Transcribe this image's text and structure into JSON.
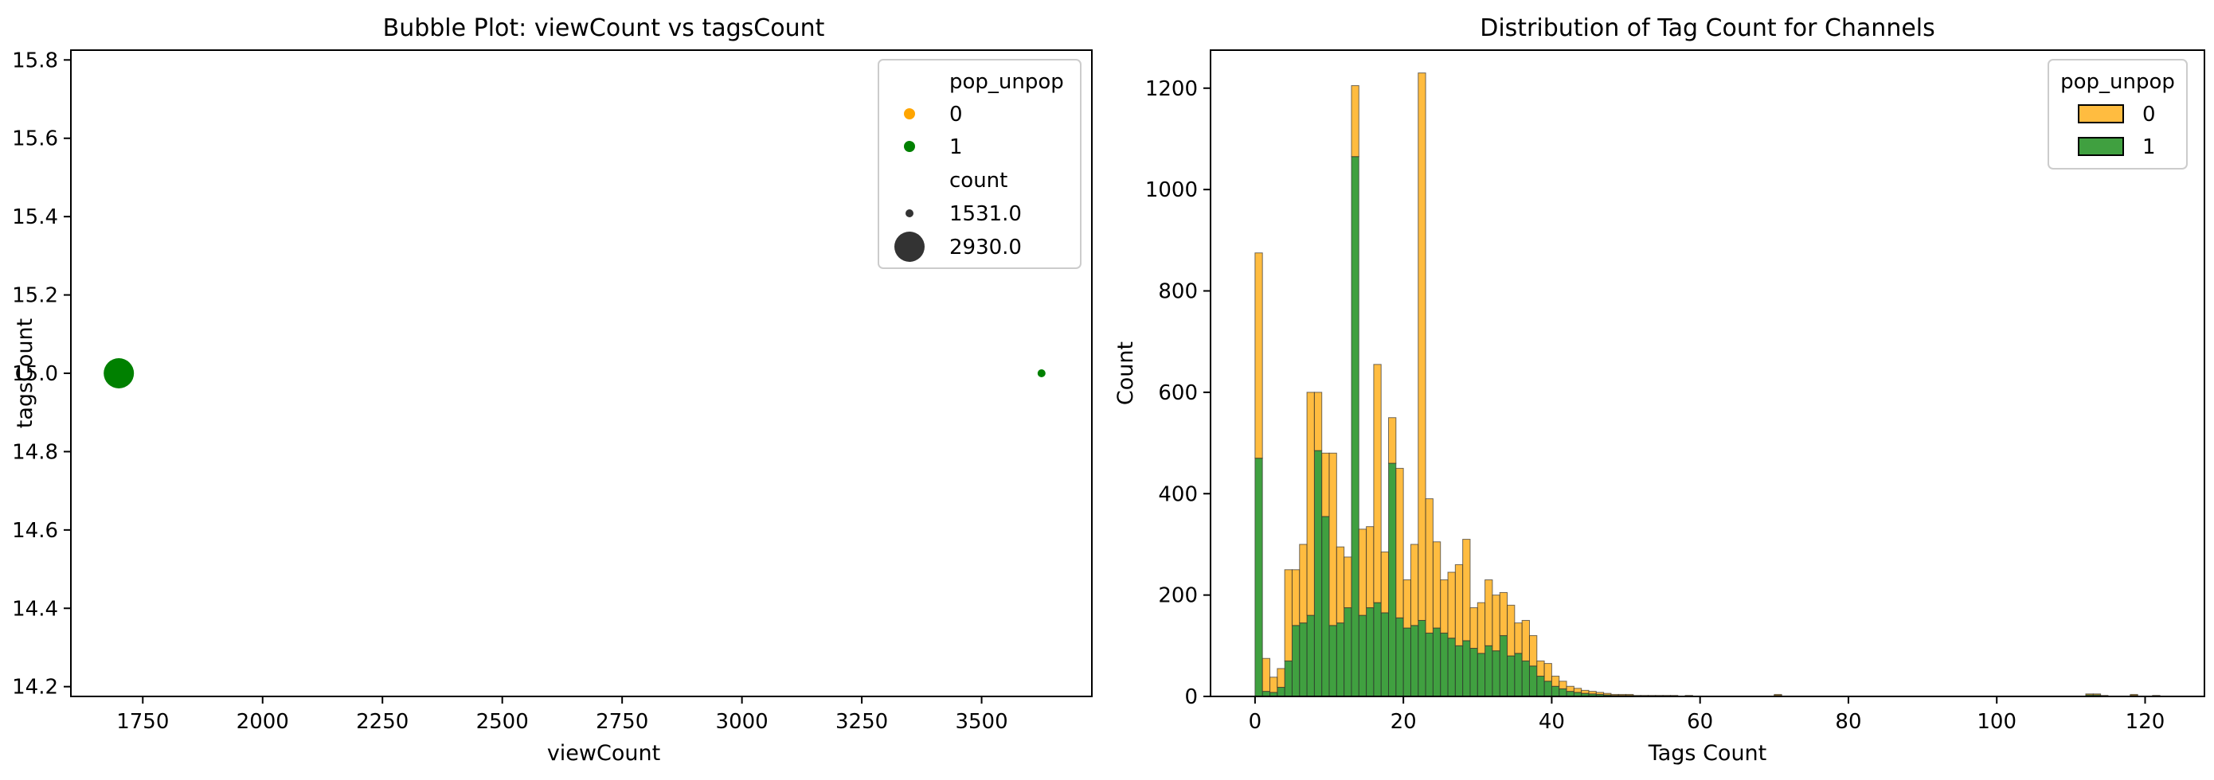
{
  "chart_data": [
    {
      "type": "scatter",
      "title": "Bubble Plot: viewCount vs tagsCount",
      "xlabel": "viewCount",
      "ylabel": "tagsCount",
      "xlim": [
        1600,
        3730
      ],
      "ylim": [
        14.175,
        15.825
      ],
      "xticks": [
        1750,
        2000,
        2250,
        2500,
        2750,
        3000,
        3250,
        3500
      ],
      "yticks": [
        14.2,
        14.4,
        14.6,
        14.8,
        15.0,
        15.2,
        15.4,
        15.6,
        15.8
      ],
      "points": [
        {
          "x": 1700,
          "y": 15.0,
          "pop_unpop": 1,
          "count": 2930.0
        },
        {
          "x": 3625,
          "y": 15.0,
          "pop_unpop": 1,
          "count": 1531.0
        }
      ],
      "legend": {
        "position": "upper right",
        "hue_title": "pop_unpop",
        "hue_entries": [
          {
            "label": "0",
            "color": "#ffa500"
          },
          {
            "label": "1",
            "color": "#008000"
          }
        ],
        "size_title": "count",
        "size_entries": [
          {
            "label": "1531.0"
          },
          {
            "label": "2930.0"
          }
        ]
      }
    },
    {
      "type": "bar",
      "subtype": "stacked-histogram",
      "title": "Distribution of Tag Count for Channels",
      "xlabel": "Tags Count",
      "ylabel": "Count",
      "xlim": [
        -6,
        128
      ],
      "ylim": [
        0,
        1275
      ],
      "xticks": [
        0,
        20,
        40,
        60,
        80,
        100,
        120
      ],
      "yticks": [
        0,
        200,
        400,
        600,
        800,
        1000,
        1200
      ],
      "bin_width": 1,
      "x_start": 0,
      "series": [
        {
          "name": "1",
          "color": "#008000",
          "values": [
            470,
            10,
            8,
            18,
            70,
            140,
            145,
            160,
            485,
            355,
            140,
            145,
            175,
            1065,
            160,
            175,
            185,
            165,
            460,
            155,
            135,
            140,
            150,
            125,
            135,
            125,
            115,
            100,
            110,
            95,
            85,
            100,
            90,
            120,
            80,
            85,
            70,
            60,
            40,
            30,
            20,
            15,
            10,
            8,
            6,
            5,
            4,
            3,
            2,
            2,
            2,
            1,
            1,
            1,
            1,
            1,
            1,
            0,
            1,
            0,
            0,
            0,
            0,
            0,
            0,
            0,
            0,
            0,
            0,
            0,
            2,
            0,
            0,
            0,
            0,
            0,
            0,
            0,
            0,
            0,
            0,
            0,
            0,
            0,
            0,
            0,
            0,
            0,
            0,
            0,
            0,
            0,
            0,
            0,
            0,
            0,
            0,
            0,
            0,
            0,
            0,
            0,
            0,
            0,
            0,
            0,
            0,
            0,
            0,
            0,
            0,
            0,
            3,
            3,
            1,
            0,
            0,
            0,
            2,
            0,
            0,
            1
          ]
        },
        {
          "name": "0",
          "color": "#ffa500",
          "values": [
            405,
            65,
            30,
            37,
            180,
            110,
            155,
            440,
            115,
            125,
            340,
            150,
            100,
            140,
            170,
            160,
            470,
            120,
            90,
            295,
            95,
            160,
            1080,
            265,
            170,
            105,
            130,
            160,
            200,
            80,
            100,
            130,
            110,
            85,
            100,
            60,
            80,
            60,
            30,
            35,
            20,
            15,
            10,
            8,
            6,
            5,
            4,
            3,
            2,
            2,
            2,
            1,
            1,
            1,
            1,
            1,
            1,
            0,
            1,
            0,
            0,
            0,
            0,
            0,
            0,
            0,
            0,
            0,
            0,
            0,
            2,
            0,
            0,
            0,
            0,
            0,
            0,
            0,
            0,
            0,
            0,
            0,
            0,
            0,
            0,
            0,
            0,
            0,
            0,
            0,
            0,
            0,
            0,
            0,
            0,
            0,
            0,
            0,
            0,
            0,
            0,
            0,
            0,
            0,
            0,
            0,
            0,
            0,
            0,
            0,
            0,
            0,
            2,
            2,
            1,
            0,
            0,
            0,
            2,
            0,
            0,
            1
          ]
        }
      ],
      "legend": {
        "position": "upper right",
        "title": "pop_unpop",
        "entries": [
          {
            "label": "0",
            "color": "#ffa500"
          },
          {
            "label": "1",
            "color": "#008000"
          }
        ]
      }
    }
  ]
}
